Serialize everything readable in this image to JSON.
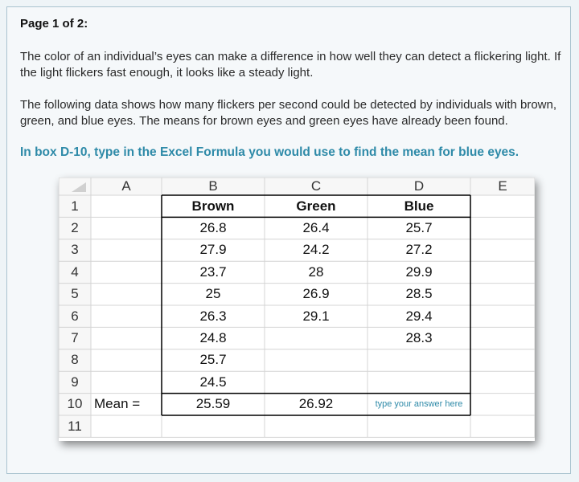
{
  "page": {
    "label": "Page 1 of 2:",
    "paragraph1": "The color of an individual’s eyes can make a difference in how well they can detect a flickering light. If the light flickers fast enough, it looks like a steady light.",
    "paragraph2": "The following data shows how many flickers per second could be detected by individuals with brown, green, and blue eyes.  The means for brown eyes and green eyes have already been found.",
    "instruction": "In box D-10, type in the Excel Formula you would use to find the mean for blue eyes."
  },
  "spreadsheet": {
    "column_letters": [
      "A",
      "B",
      "C",
      "D",
      "E"
    ],
    "row_numbers": [
      "1",
      "2",
      "3",
      "4",
      "5",
      "6",
      "7",
      "8",
      "9",
      "10",
      "11"
    ],
    "headers": {
      "brown": "Brown",
      "green": "Green",
      "blue": "Blue"
    },
    "brown": [
      "26.8",
      "27.9",
      "23.7",
      "25",
      "26.3",
      "24.8",
      "25.7",
      "24.5"
    ],
    "green": [
      "26.4",
      "24.2",
      "28",
      "26.9",
      "29.1",
      "",
      "",
      ""
    ],
    "blue": [
      "25.7",
      "27.2",
      "29.9",
      "28.5",
      "29.4",
      "28.3",
      "",
      ""
    ],
    "mean_label": "Mean =",
    "mean_brown": "25.59",
    "mean_green": "26.92",
    "answer_placeholder": "type your answer here",
    "answer_value": ""
  },
  "colors": {
    "accent": "#2e8aa8",
    "grid": "#d4d4d4",
    "table_border": "#000000",
    "header_bg": "#ffffff"
  }
}
